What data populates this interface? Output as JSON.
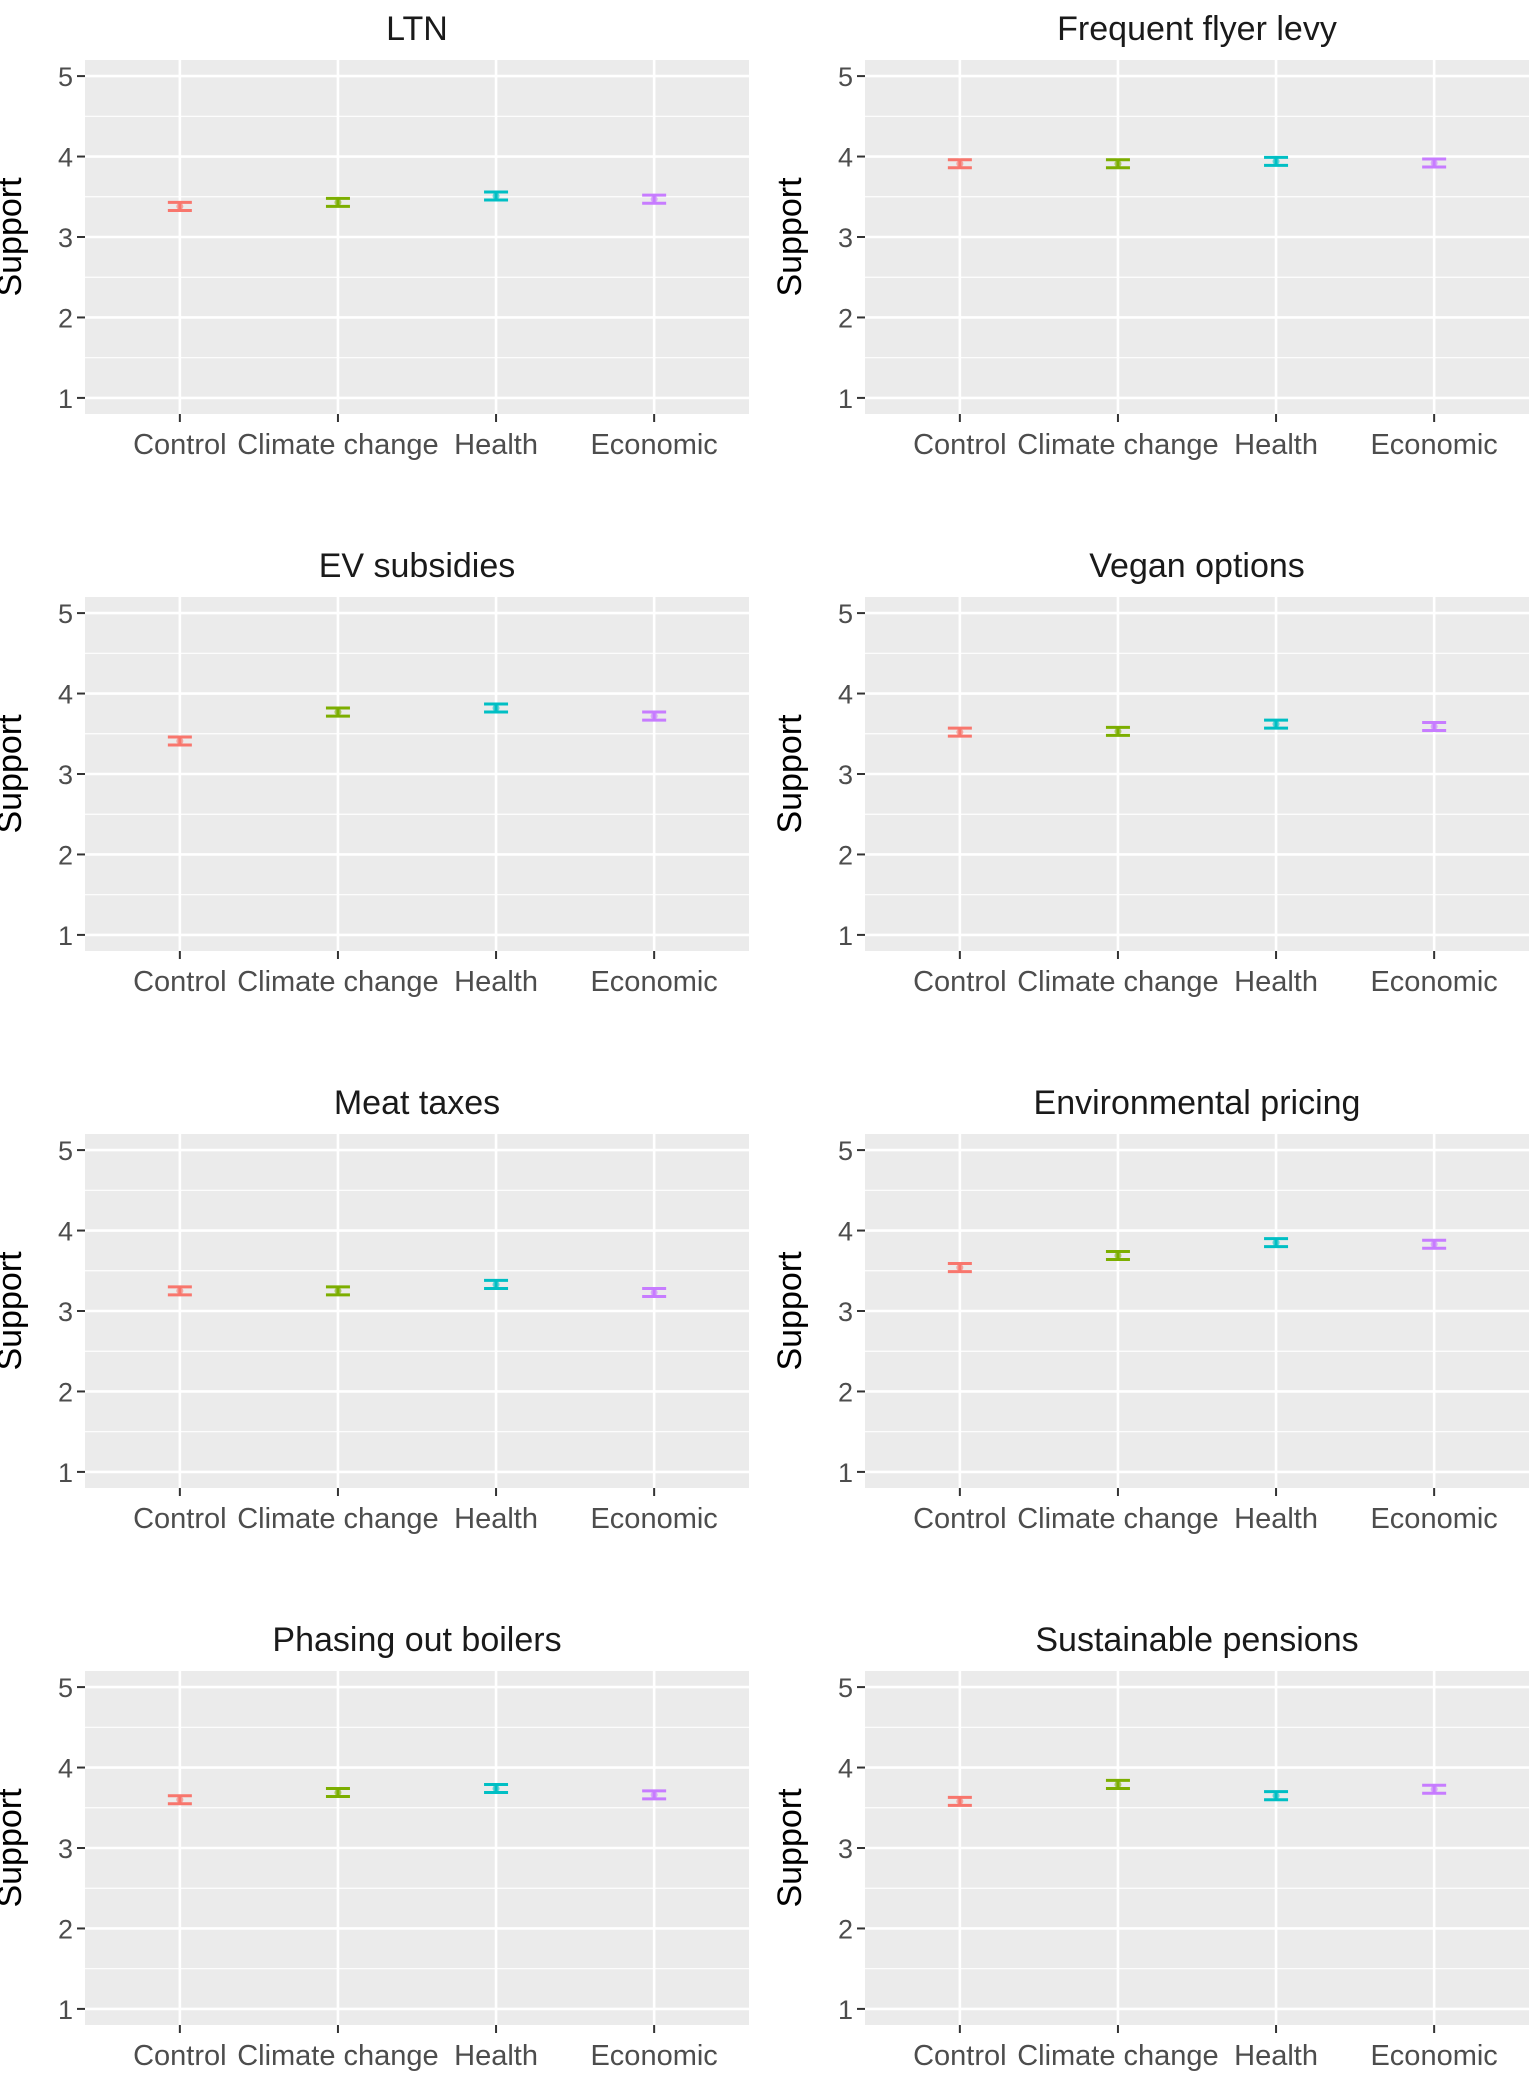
{
  "chart_data": [
    {
      "type": "errorbar",
      "title": "LTN",
      "ylabel": "Support",
      "xlabel": "",
      "ylim": [
        0.8,
        5.2
      ],
      "yticks": [
        1,
        2,
        3,
        4,
        5
      ],
      "grid": true,
      "legend": "none",
      "categories": [
        "Control",
        "Climate change",
        "Health",
        "Economic"
      ],
      "means": [
        3.38,
        3.43,
        3.51,
        3.47
      ],
      "lower": [
        3.33,
        3.38,
        3.46,
        3.42
      ],
      "upper": [
        3.43,
        3.48,
        3.56,
        3.52
      ]
    },
    {
      "type": "errorbar",
      "title": "Frequent flyer levy",
      "ylabel": "Support",
      "xlabel": "",
      "ylim": [
        0.8,
        5.2
      ],
      "yticks": [
        1,
        2,
        3,
        4,
        5
      ],
      "grid": true,
      "legend": "none",
      "categories": [
        "Control",
        "Climate change",
        "Health",
        "Economic"
      ],
      "means": [
        3.91,
        3.91,
        3.94,
        3.92
      ],
      "lower": [
        3.86,
        3.86,
        3.89,
        3.87
      ],
      "upper": [
        3.96,
        3.96,
        3.99,
        3.97
      ]
    },
    {
      "type": "errorbar",
      "title": "EV subsidies",
      "ylabel": "Support",
      "xlabel": "",
      "ylim": [
        0.8,
        5.2
      ],
      "yticks": [
        1,
        2,
        3,
        4,
        5
      ],
      "grid": true,
      "legend": "none",
      "categories": [
        "Control",
        "Climate change",
        "Health",
        "Economic"
      ],
      "means": [
        3.41,
        3.77,
        3.82,
        3.72
      ],
      "lower": [
        3.36,
        3.72,
        3.77,
        3.67
      ],
      "upper": [
        3.46,
        3.82,
        3.87,
        3.77
      ]
    },
    {
      "type": "errorbar",
      "title": "Vegan options",
      "ylabel": "Support",
      "xlabel": "",
      "ylim": [
        0.8,
        5.2
      ],
      "yticks": [
        1,
        2,
        3,
        4,
        5
      ],
      "grid": true,
      "legend": "none",
      "categories": [
        "Control",
        "Climate change",
        "Health",
        "Economic"
      ],
      "means": [
        3.52,
        3.53,
        3.62,
        3.59
      ],
      "lower": [
        3.47,
        3.48,
        3.57,
        3.54
      ],
      "upper": [
        3.57,
        3.58,
        3.67,
        3.64
      ]
    },
    {
      "type": "errorbar",
      "title": "Meat taxes",
      "ylabel": "Support",
      "xlabel": "",
      "ylim": [
        0.8,
        5.2
      ],
      "yticks": [
        1,
        2,
        3,
        4,
        5
      ],
      "grid": true,
      "legend": "none",
      "categories": [
        "Control",
        "Climate change",
        "Health",
        "Economic"
      ],
      "means": [
        3.25,
        3.25,
        3.33,
        3.23
      ],
      "lower": [
        3.2,
        3.2,
        3.28,
        3.18
      ],
      "upper": [
        3.3,
        3.3,
        3.38,
        3.28
      ]
    },
    {
      "type": "errorbar",
      "title": "Environmental pricing",
      "ylabel": "Support",
      "xlabel": "",
      "ylim": [
        0.8,
        5.2
      ],
      "yticks": [
        1,
        2,
        3,
        4,
        5
      ],
      "grid": true,
      "legend": "none",
      "categories": [
        "Control",
        "Climate change",
        "Health",
        "Economic"
      ],
      "means": [
        3.54,
        3.69,
        3.85,
        3.83
      ],
      "lower": [
        3.49,
        3.64,
        3.8,
        3.78
      ],
      "upper": [
        3.59,
        3.74,
        3.9,
        3.88
      ]
    },
    {
      "type": "errorbar",
      "title": "Phasing out boilers",
      "ylabel": "Support",
      "xlabel": "",
      "ylim": [
        0.8,
        5.2
      ],
      "yticks": [
        1,
        2,
        3,
        4,
        5
      ],
      "grid": true,
      "legend": "none",
      "categories": [
        "Control",
        "Climate change",
        "Health",
        "Economic"
      ],
      "means": [
        3.6,
        3.69,
        3.74,
        3.66
      ],
      "lower": [
        3.55,
        3.64,
        3.69,
        3.61
      ],
      "upper": [
        3.65,
        3.74,
        3.79,
        3.71
      ]
    },
    {
      "type": "errorbar",
      "title": "Sustainable pensions",
      "ylabel": "Support",
      "xlabel": "",
      "ylim": [
        0.8,
        5.2
      ],
      "yticks": [
        1,
        2,
        3,
        4,
        5
      ],
      "grid": true,
      "legend": "none",
      "categories": [
        "Control",
        "Climate change",
        "Health",
        "Economic"
      ],
      "means": [
        3.58,
        3.79,
        3.65,
        3.73
      ],
      "lower": [
        3.53,
        3.74,
        3.6,
        3.68
      ],
      "upper": [
        3.63,
        3.84,
        3.7,
        3.78
      ]
    }
  ],
  "colors": {
    "Control": "#F8766D",
    "Climate change": "#7CAE00",
    "Health": "#00BFC4",
    "Economic": "#C77CFF"
  }
}
